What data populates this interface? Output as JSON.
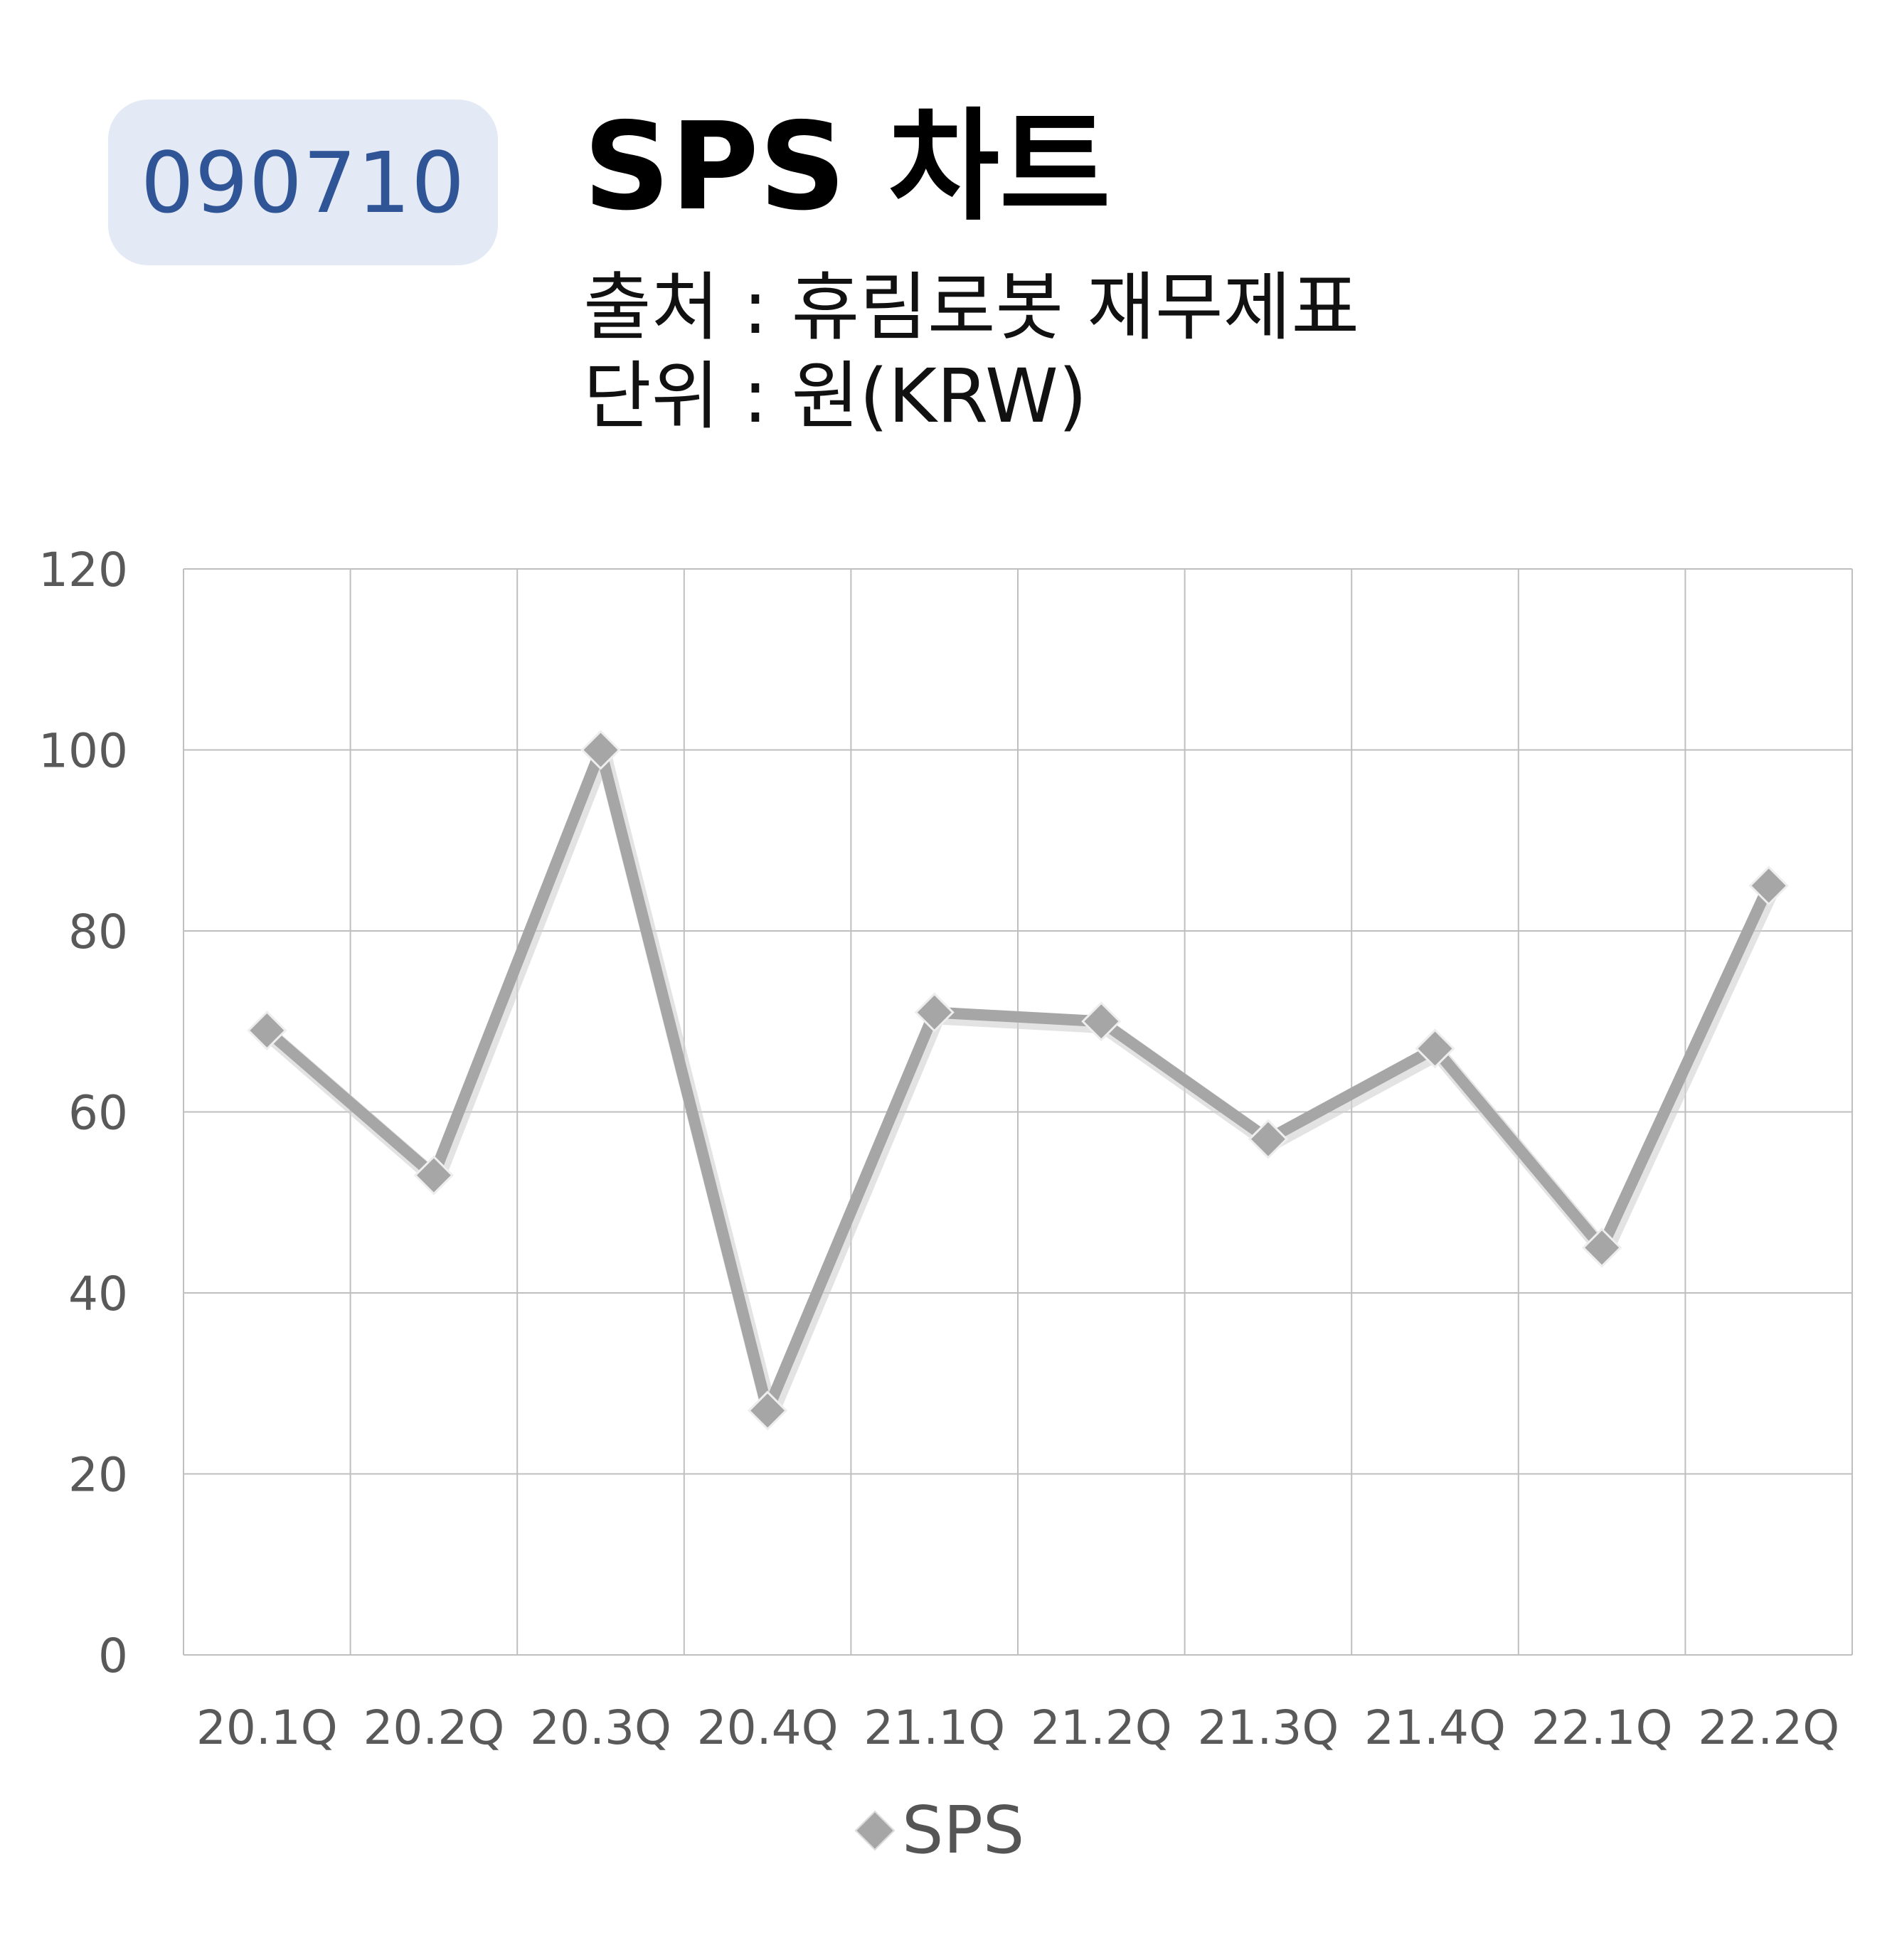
{
  "badge": {
    "code": "090710"
  },
  "header": {
    "title": "SPS 차트",
    "source": "출처 : 휴림로봇 재무제표",
    "unit": "단위 : 원(KRW)"
  },
  "colors": {
    "line": "#a6a6a6",
    "grid": "#bfbfbf",
    "badge_bg": "#e3e9f5",
    "badge_text": "#2f5597"
  },
  "chart_data": {
    "type": "line",
    "categories": [
      "20.1Q",
      "20.2Q",
      "20.3Q",
      "20.4Q",
      "21.1Q",
      "21.2Q",
      "21.3Q",
      "21.4Q",
      "22.1Q",
      "22.2Q"
    ],
    "series": [
      {
        "name": "SPS",
        "values": [
          69,
          53,
          100,
          27,
          71,
          70,
          57,
          67,
          45,
          85
        ]
      }
    ],
    "ylim": [
      0,
      120
    ],
    "yticks": [
      0,
      20,
      40,
      60,
      80,
      100,
      120
    ],
    "grid": true,
    "legend_position": "bottom",
    "marker": "diamond"
  }
}
